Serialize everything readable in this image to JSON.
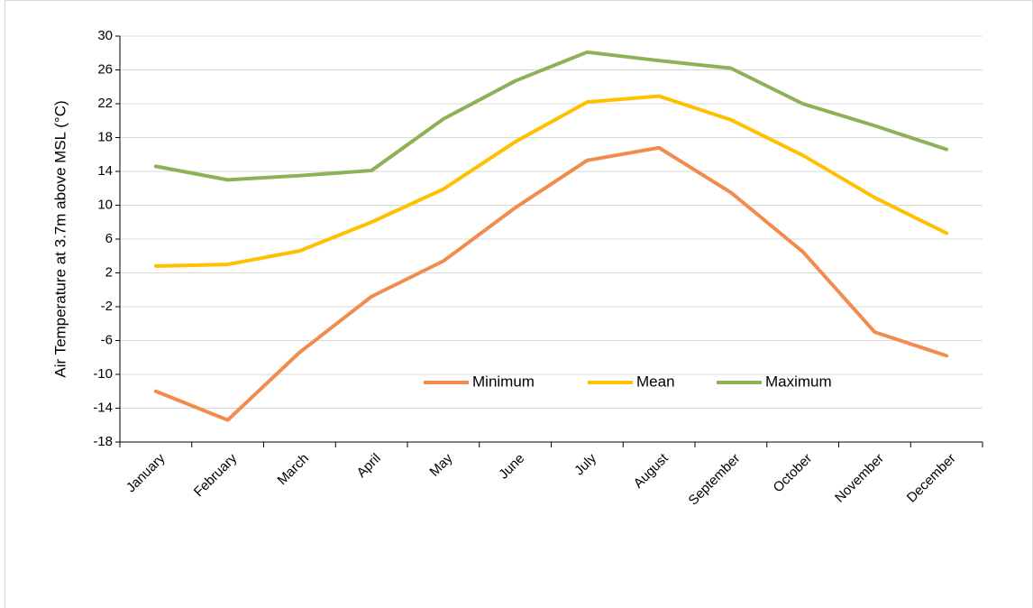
{
  "chart_data": {
    "type": "line",
    "y_label": "Air Temperature at 3.7m above MSL (°C)",
    "categories": [
      "January",
      "February",
      "March",
      "April",
      "May",
      "June",
      "July",
      "August",
      "September",
      "October",
      "November",
      "December"
    ],
    "series": [
      {
        "name": "Minimum",
        "color": "#f28c4e",
        "values": [
          -12.0,
          -15.4,
          -7.4,
          -0.8,
          3.4,
          9.7,
          15.3,
          16.8,
          11.5,
          4.5,
          -5.0,
          -7.8
        ]
      },
      {
        "name": "Mean",
        "color": "#ffc000",
        "values": [
          2.8,
          3.0,
          4.6,
          8.0,
          11.9,
          17.5,
          22.2,
          22.9,
          20.1,
          15.9,
          10.9,
          6.7
        ]
      },
      {
        "name": "Maximum",
        "color": "#8db255",
        "values": [
          14.6,
          13.0,
          13.5,
          14.1,
          20.2,
          24.7,
          28.1,
          27.1,
          26.2,
          22.0,
          19.4,
          16.6
        ]
      }
    ],
    "ylim": [
      -18,
      30
    ],
    "yticks": [
      -18,
      -14,
      -10,
      -6,
      -2,
      2,
      6,
      10,
      14,
      18,
      22,
      26,
      30
    ],
    "grid": true,
    "legend": "inside"
  }
}
